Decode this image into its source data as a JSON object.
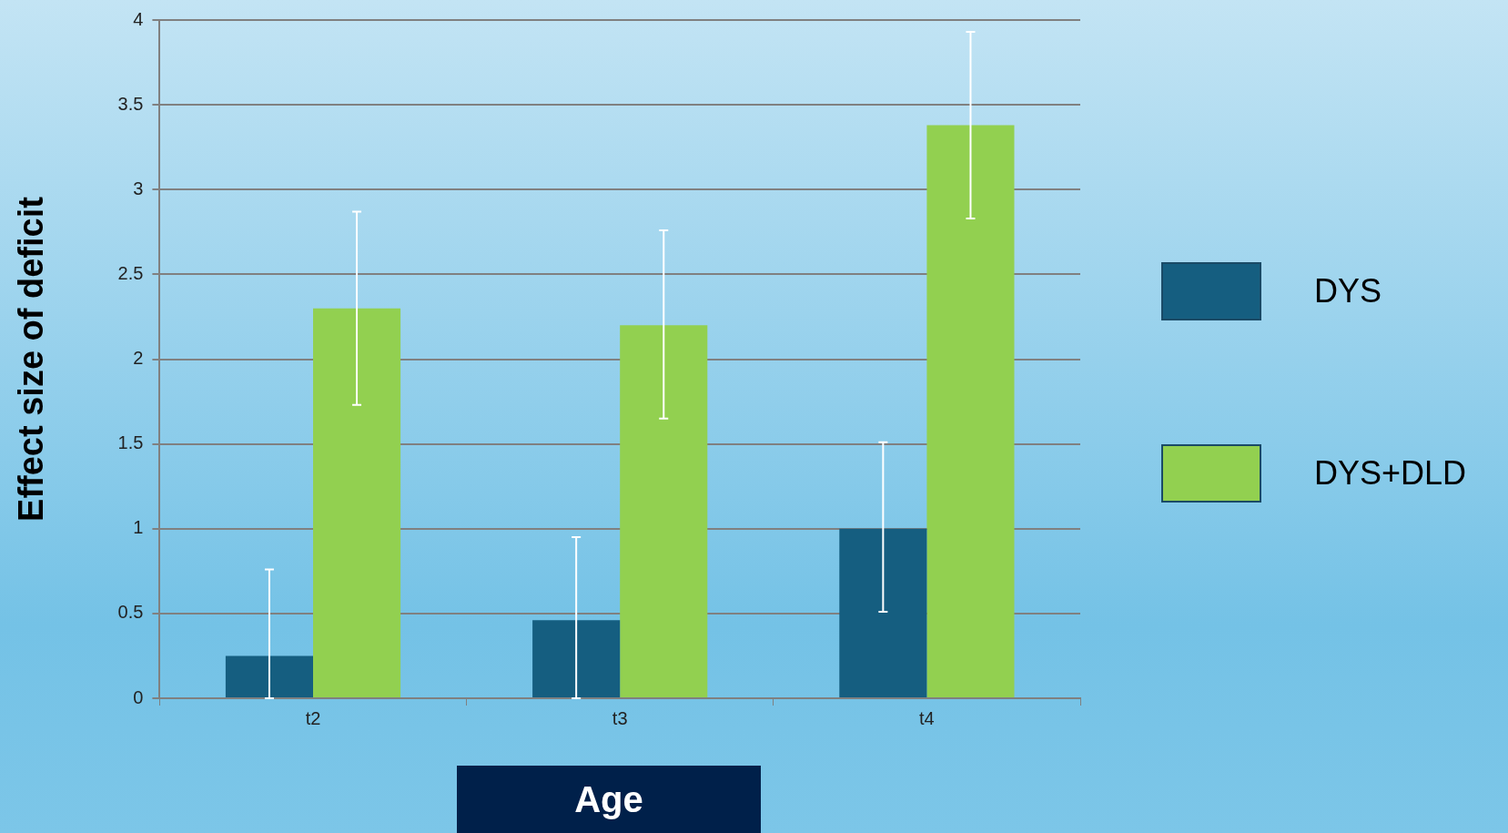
{
  "chart_data": {
    "type": "bar",
    "xlabel": "Age",
    "ylabel": "Effect size of deficit",
    "categories": [
      "t2",
      "t3",
      "t4"
    ],
    "series": [
      {
        "name": "DYS",
        "color": "#155e80",
        "values": [
          0.25,
          0.46,
          1.0
        ],
        "errors": [
          [
            0,
            0.76
          ],
          [
            0,
            0.95
          ],
          [
            0.51,
            1.51
          ]
        ]
      },
      {
        "name": "DYS+DLD",
        "color": "#92d050",
        "values": [
          2.3,
          2.2,
          3.38
        ],
        "errors": [
          [
            1.73,
            2.87
          ],
          [
            1.65,
            2.76
          ],
          [
            2.83,
            3.93
          ]
        ]
      }
    ],
    "ylim": [
      0,
      4
    ],
    "yticks": [
      0,
      0.5,
      1,
      1.5,
      2,
      2.5,
      3,
      3.5,
      4
    ],
    "grid": "y",
    "legend": "right"
  }
}
